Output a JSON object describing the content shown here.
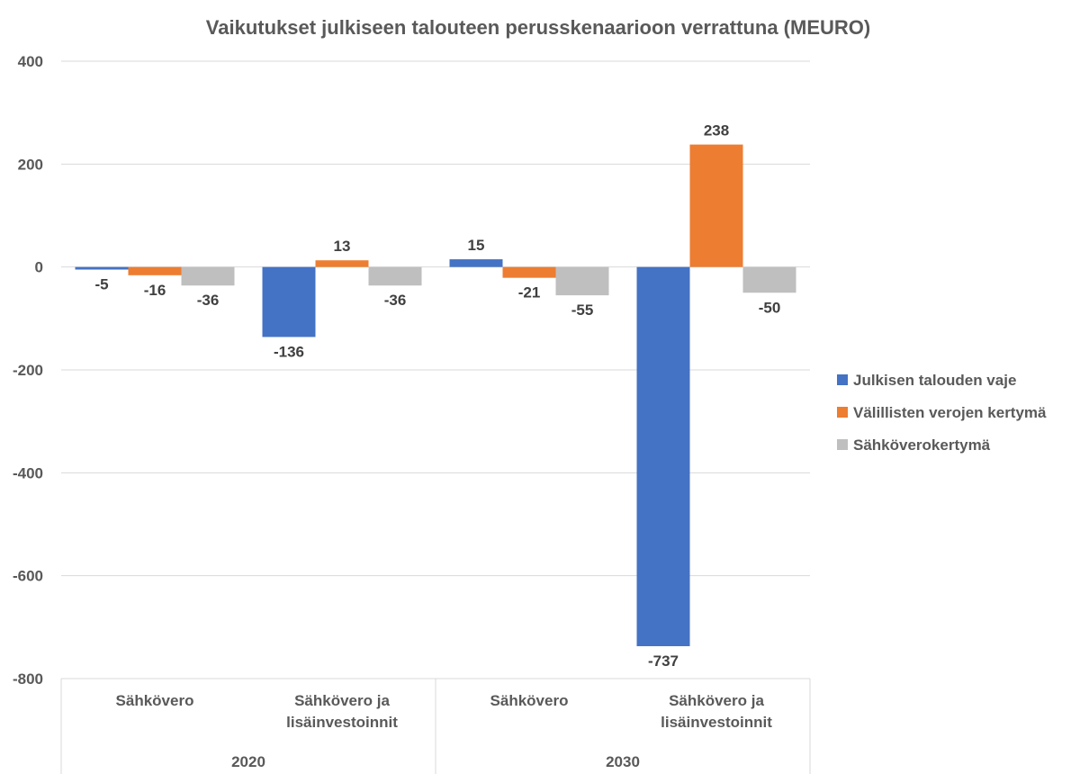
{
  "chart_data": {
    "type": "bar",
    "title": "Vaikutukset julkiseen talouteen perusskenaarioon verrattuna (MEURO)",
    "xlabel": "",
    "ylabel": "",
    "ylim": [
      -800,
      400
    ],
    "yticks": [
      400,
      200,
      0,
      -200,
      -400,
      -600,
      -800
    ],
    "tick_labels": [
      "400",
      "200",
      "0",
      "-200",
      "-400",
      "-600",
      "-800"
    ],
    "grid": true,
    "legend_position": "right",
    "groups": [
      {
        "label": "2020",
        "categories": [
          "Sähkövero",
          "Sähkövero ja lisäinvestoinnit"
        ]
      },
      {
        "label": "2030",
        "categories": [
          "Sähkövero",
          "Sähkövero ja lisäinvestoinnit"
        ]
      }
    ],
    "categories": [
      "Sähkövero",
      "Sähkövero ja lisäinvestoinnit",
      "Sähkövero",
      "Sähkövero ja lisäinvestoinnit"
    ],
    "category_lines": [
      [
        "Sähkövero"
      ],
      [
        "Sähkövero ja",
        "lisäinvestoinnit"
      ],
      [
        "Sähkövero"
      ],
      [
        "Sähkövero ja",
        "lisäinvestoinnit"
      ]
    ],
    "series": [
      {
        "name": "Julkisen talouden vaje",
        "color": "#4472C4",
        "values": [
          -5,
          -136,
          15,
          -737
        ],
        "labels": [
          "-5",
          "-136",
          "15",
          "-737"
        ]
      },
      {
        "name": "Välillisten verojen kertymä",
        "color": "#ED7D31",
        "values": [
          -16,
          13,
          -21,
          238
        ],
        "labels": [
          "-16",
          "13",
          "-21",
          "238"
        ]
      },
      {
        "name": "Sähköverokertymä",
        "color": "#BFBFBF",
        "values": [
          -36,
          -36,
          -55,
          -50
        ],
        "labels": [
          "-36",
          "-36",
          "-55",
          "-50"
        ]
      }
    ]
  }
}
